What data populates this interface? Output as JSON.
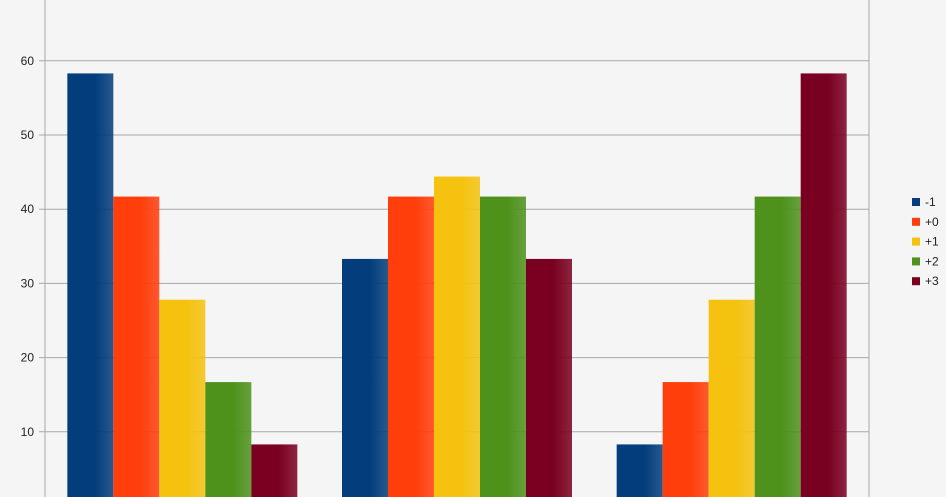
{
  "chart_data": {
    "type": "bar",
    "title": "",
    "xlabel": "",
    "ylabel": "",
    "categories": [
      "",
      "",
      ""
    ],
    "ylim": [
      0,
      67
    ],
    "yticks": [
      10,
      20,
      30,
      40,
      50,
      60
    ],
    "grid": true,
    "legend_position": "right",
    "series": [
      {
        "name": "-1",
        "color": "#033d7c",
        "values": [
          58.3,
          33.3,
          8.3
        ]
      },
      {
        "name": "+0",
        "color": "#ff3e0c",
        "values": [
          41.7,
          41.7,
          16.7
        ]
      },
      {
        "name": "+1",
        "color": "#f4c20f",
        "values": [
          27.8,
          44.4,
          27.8
        ]
      },
      {
        "name": "+2",
        "color": "#4e921c",
        "values": [
          16.7,
          41.7,
          41.7
        ]
      },
      {
        "name": "+3",
        "color": "#7a0021",
        "values": [
          8.3,
          33.3,
          58.3
        ]
      }
    ]
  }
}
